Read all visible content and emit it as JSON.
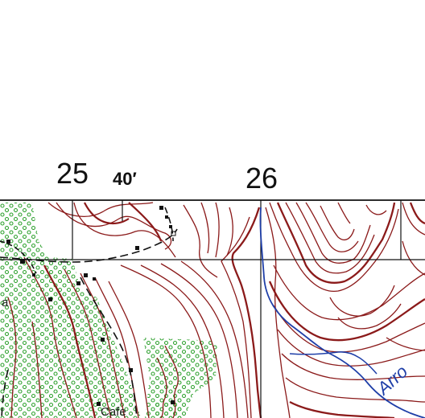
{
  "grid": {
    "easting_labels": [
      "25",
      "26"
    ],
    "minute_label": "40′"
  },
  "places": {
    "left_edge_fragment": "a",
    "cafe": "Cafe"
  },
  "river": {
    "name_fragment": "Arro"
  },
  "colors": {
    "paper": "#ffffff",
    "contour": "#8b1a1a",
    "water": "#1f3fa8",
    "vegetation": "#2fa12f",
    "grid": "#111111",
    "road": "#111111"
  }
}
